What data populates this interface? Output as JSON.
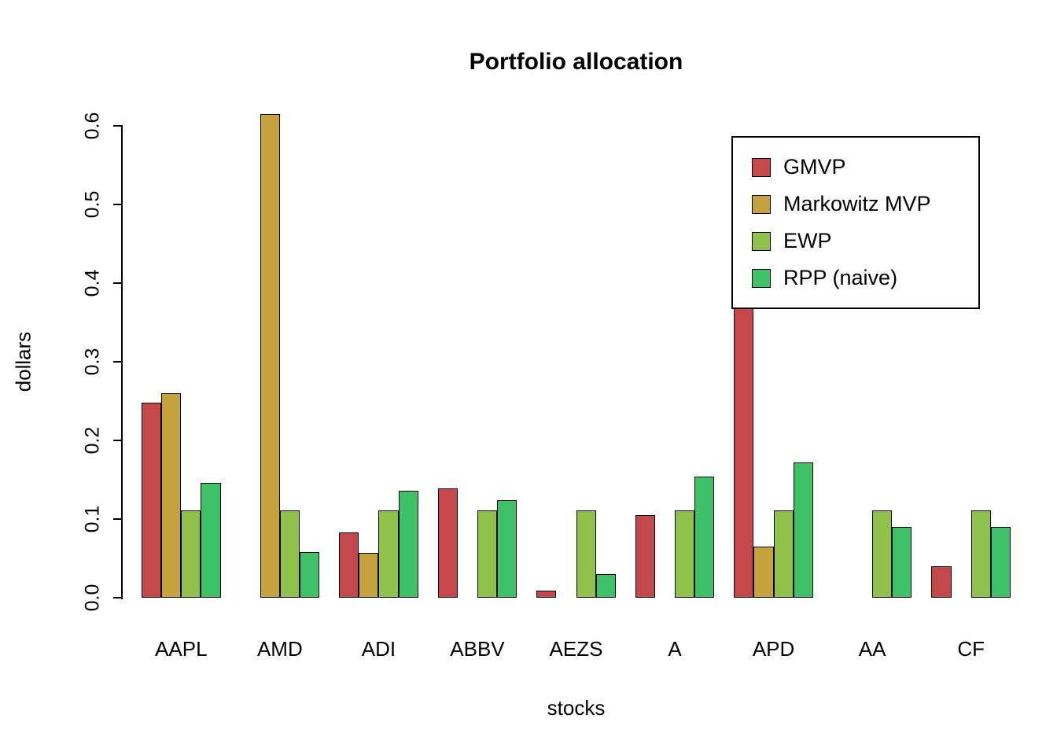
{
  "chart_data": {
    "type": "bar",
    "title": "Portfolio allocation",
    "xlabel": "stocks",
    "ylabel": "dollars",
    "categories": [
      "AAPL",
      "AMD",
      "ADI",
      "ABBV",
      "AEZS",
      "A",
      "APD",
      "AA",
      "CF"
    ],
    "series": [
      {
        "name": "GMVP",
        "color": "#C5494B",
        "values": [
          0.248,
          0.0,
          0.083,
          0.139,
          0.009,
          0.105,
          0.375,
          0.0,
          0.04
        ]
      },
      {
        "name": "Markowitz MVP",
        "color": "#C7A33F",
        "values": [
          0.26,
          0.615,
          0.057,
          0.0,
          0.0,
          0.0,
          0.065,
          0.0,
          0.0
        ]
      },
      {
        "name": "EWP",
        "color": "#8FC14C",
        "values": [
          0.111,
          0.111,
          0.111,
          0.111,
          0.111,
          0.111,
          0.111,
          0.111,
          0.111
        ]
      },
      {
        "name": "RPP (naive)",
        "color": "#3EC167",
        "values": [
          0.146,
          0.058,
          0.136,
          0.124,
          0.03,
          0.154,
          0.172,
          0.09,
          0.09
        ]
      }
    ],
    "ylim": [
      0.0,
      0.6
    ],
    "yticks": [
      0.0,
      0.1,
      0.2,
      0.3,
      0.4,
      0.5,
      0.6
    ],
    "ytick_labels": [
      "0.0",
      "0.1",
      "0.2",
      "0.3",
      "0.4",
      "0.5",
      "0.6"
    ],
    "grid": false,
    "legend_position": "top-right",
    "bar_border_color": "#000000",
    "background": "#FFFFFF"
  }
}
